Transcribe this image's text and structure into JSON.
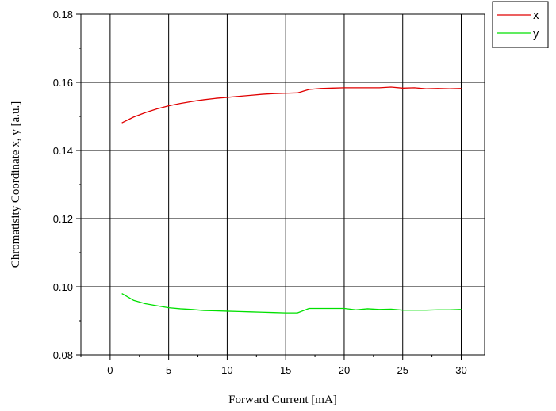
{
  "chart_data": {
    "type": "line",
    "title": "",
    "xlabel": "Forward Current [mA]",
    "ylabel": "Chromatisity Coordinate x, y [a.u.]",
    "xlim": [
      -2.5,
      32
    ],
    "ylim": [
      0.08,
      0.18
    ],
    "x_ticks": [
      0,
      5,
      10,
      15,
      20,
      25,
      30
    ],
    "y_ticks": [
      0.08,
      0.1,
      0.12,
      0.14,
      0.16,
      0.18
    ],
    "x_tick_labels": [
      "0",
      "5",
      "10",
      "15",
      "20",
      "25",
      "30"
    ],
    "y_tick_labels": [
      "0.08",
      "0.10",
      "0.12",
      "0.14",
      "0.16",
      "0.18"
    ],
    "grid": true,
    "legend_position": "top-right outside",
    "series": [
      {
        "name": "x",
        "color": "#e00000",
        "x": [
          1,
          2,
          3,
          4,
          5,
          6,
          7,
          8,
          9,
          10,
          11,
          12,
          13,
          14,
          15,
          16,
          17,
          18,
          19,
          20,
          21,
          22,
          23,
          24,
          25,
          26,
          27,
          28,
          29,
          30
        ],
        "values": [
          0.1481,
          0.1498,
          0.1511,
          0.1522,
          0.1531,
          0.1538,
          0.1544,
          0.1549,
          0.1553,
          0.1556,
          0.1559,
          0.1562,
          0.1565,
          0.1567,
          0.1568,
          0.1569,
          0.1579,
          0.1582,
          0.1583,
          0.1584,
          0.1584,
          0.1584,
          0.1584,
          0.1586,
          0.1583,
          0.1584,
          0.1581,
          0.1582,
          0.1581,
          0.1582
        ]
      },
      {
        "name": "y",
        "color": "#00e000",
        "x": [
          1,
          2,
          3,
          4,
          5,
          6,
          7,
          8,
          9,
          10,
          11,
          12,
          13,
          14,
          15,
          16,
          17,
          18,
          19,
          20,
          21,
          22,
          23,
          24,
          25,
          26,
          27,
          28,
          29,
          30
        ],
        "values": [
          0.098,
          0.096,
          0.095,
          0.0944,
          0.0938,
          0.0935,
          0.0933,
          0.093,
          0.0929,
          0.0928,
          0.0927,
          0.0926,
          0.0925,
          0.0924,
          0.0923,
          0.0923,
          0.0936,
          0.0936,
          0.0936,
          0.0936,
          0.0932,
          0.0935,
          0.0933,
          0.0934,
          0.0931,
          0.0931,
          0.0931,
          0.0932,
          0.0932,
          0.0933
        ]
      }
    ]
  }
}
